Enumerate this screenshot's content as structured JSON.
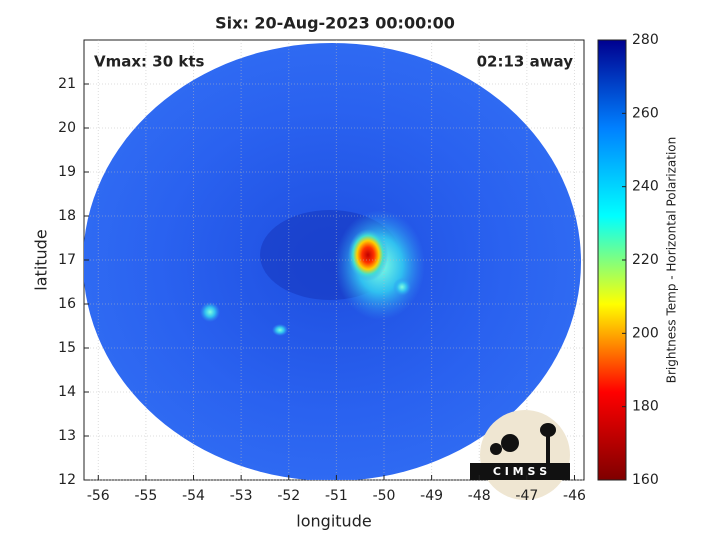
{
  "chart_data": {
    "type": "image",
    "title": "Six: 20-Aug-2023 00:00:00",
    "annotations": [
      "Vmax: 30 kts",
      "02:13 away"
    ],
    "x_label": "longitude",
    "y_label": "latitude",
    "xlim": [
      -56.3,
      -45.8
    ],
    "xticks": [
      -56,
      -55,
      -54,
      -53,
      -52,
      -51,
      -50,
      -49,
      -48,
      -47,
      -46
    ],
    "ylim": [
      12,
      22
    ],
    "yticks": [
      12,
      13,
      14,
      15,
      16,
      17,
      18,
      19,
      20,
      21
    ],
    "grid": true,
    "colorbar": {
      "label": "Brightness Temp - Horizontal Polarization",
      "lim": [
        160,
        280
      ],
      "ticks": [
        160,
        180,
        200,
        220,
        240,
        260,
        280
      ],
      "colormap": "jet"
    },
    "logo": "C I M S S"
  }
}
